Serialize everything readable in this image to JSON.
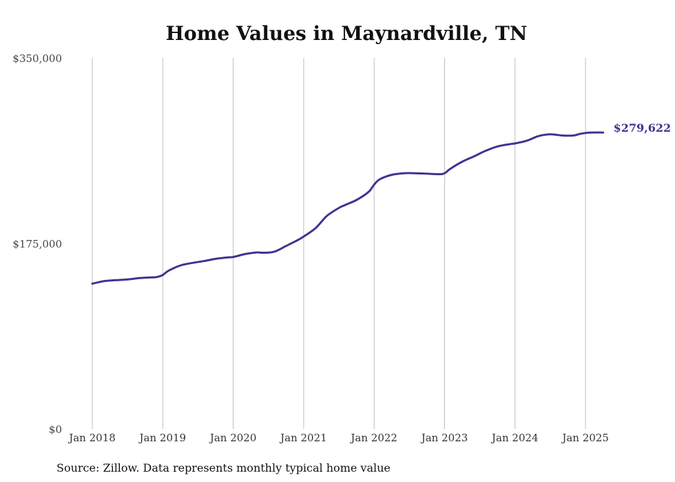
{
  "chart_data": {
    "type": "line",
    "title": "Home Values in Maynardville, TN",
    "xlabel": "",
    "ylabel": "",
    "y_ticks": [
      {
        "value": 0,
        "label": "$0"
      },
      {
        "value": 175000,
        "label": "$175,000"
      },
      {
        "value": 350000,
        "label": "$350,000"
      }
    ],
    "x_ticks": [
      {
        "value": 2018,
        "label": "Jan 2018"
      },
      {
        "value": 2019,
        "label": "Jan 2019"
      },
      {
        "value": 2020,
        "label": "Jan 2020"
      },
      {
        "value": 2021,
        "label": "Jan 2021"
      },
      {
        "value": 2022,
        "label": "Jan 2022"
      },
      {
        "value": 2023,
        "label": "Jan 2023"
      },
      {
        "value": 2024,
        "label": "Jan 2024"
      },
      {
        "value": 2025,
        "label": "Jan 2025"
      }
    ],
    "xlim": [
      2018,
      2025.25
    ],
    "ylim": [
      0,
      350000
    ],
    "grid": "vertical",
    "line_color": "#3d3590",
    "end_label": "$279,622",
    "source": "Source: Zillow. Data represents monthly typical home value",
    "series": [
      {
        "x": [
          2018.0,
          2018.17,
          2018.33,
          2018.5,
          2018.67,
          2018.83,
          2018.92,
          2019.0,
          2019.08,
          2019.25,
          2019.42,
          2019.58,
          2019.75,
          2019.92,
          2020.0,
          2020.17,
          2020.33,
          2020.42,
          2020.58,
          2020.75,
          2020.92,
          2021.0,
          2021.17,
          2021.33,
          2021.5,
          2021.58,
          2021.75,
          2021.92,
          2022.0,
          2022.08,
          2022.25,
          2022.42,
          2022.58,
          2022.75,
          2022.92,
          2023.0,
          2023.08,
          2023.25,
          2023.42,
          2023.58,
          2023.75,
          2023.92,
          2024.0,
          2024.17,
          2024.33,
          2024.5,
          2024.67,
          2024.83,
          2024.92,
          2025.0,
          2025.08,
          2025.25
        ],
        "y": [
          137000,
          139500,
          140300,
          141000,
          142300,
          142900,
          143300,
          145200,
          149200,
          154200,
          156600,
          158300,
          160400,
          161800,
          162200,
          165000,
          166500,
          166200,
          167100,
          172600,
          178300,
          181500,
          189500,
          201000,
          208500,
          211000,
          216000,
          223500,
          230500,
          235500,
          239700,
          241200,
          241200,
          240800,
          240300,
          241200,
          245300,
          252100,
          257200,
          262300,
          266500,
          268600,
          269300,
          272000,
          276200,
          277900,
          276800,
          276800,
          278300,
          279200,
          279622,
          279622
        ]
      }
    ]
  }
}
